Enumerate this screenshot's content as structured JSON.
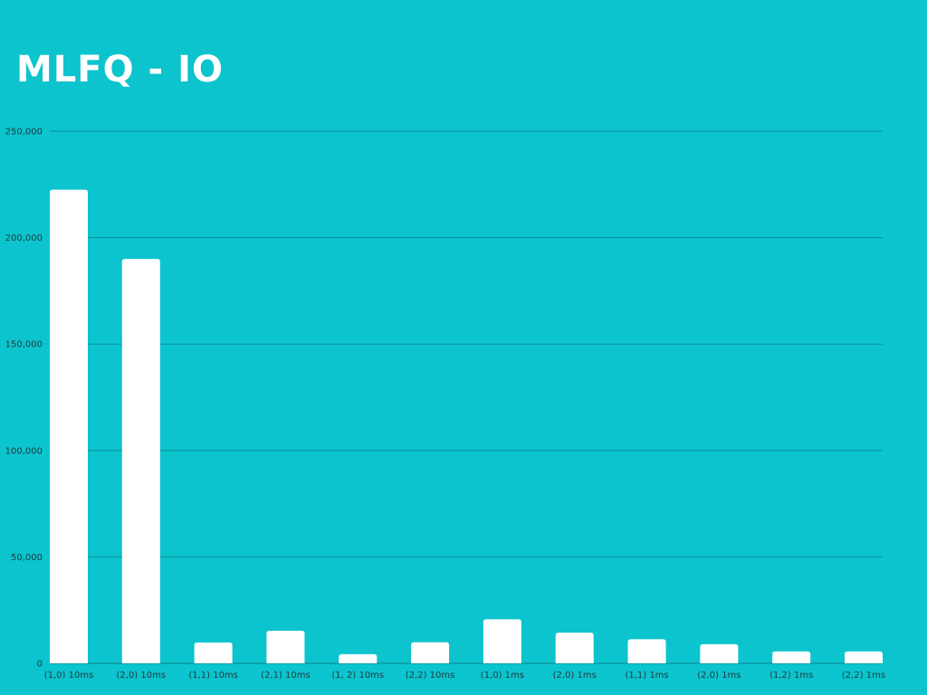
{
  "chart_data": {
    "type": "bar",
    "title": "MLFQ - IO",
    "xlabel": "",
    "ylabel": "",
    "categories": [
      "(1,0) 10ms",
      "(2,0) 10ms",
      "(1,1) 10ms",
      "(2,1) 10ms",
      "(1, 2) 10ms",
      "(2,2) 10ms",
      "(1,0) 1ms",
      "(2,0) 1ms",
      "(1,1) 1ms",
      "(2,0) 1ms",
      "(1,2) 1ms",
      "(2,2) 1ms"
    ],
    "values": [
      222500,
      190000,
      9800,
      15300,
      4300,
      9900,
      20700,
      14400,
      11300,
      9000,
      5600,
      5600
    ],
    "ylim": [
      0,
      250000
    ],
    "yticks": [
      0,
      50000,
      100000,
      150000,
      200000,
      250000
    ],
    "ytick_labels": [
      "0",
      "50,000",
      "100,000",
      "150,000",
      "200,000",
      "250,000"
    ],
    "grid": true,
    "legend": "none",
    "colors": {
      "background": "#0cc4cd",
      "bar": "#ffffff",
      "grid": "#0b8f9a",
      "title": "#ffffff",
      "tick_label": "#1f3b40"
    }
  }
}
